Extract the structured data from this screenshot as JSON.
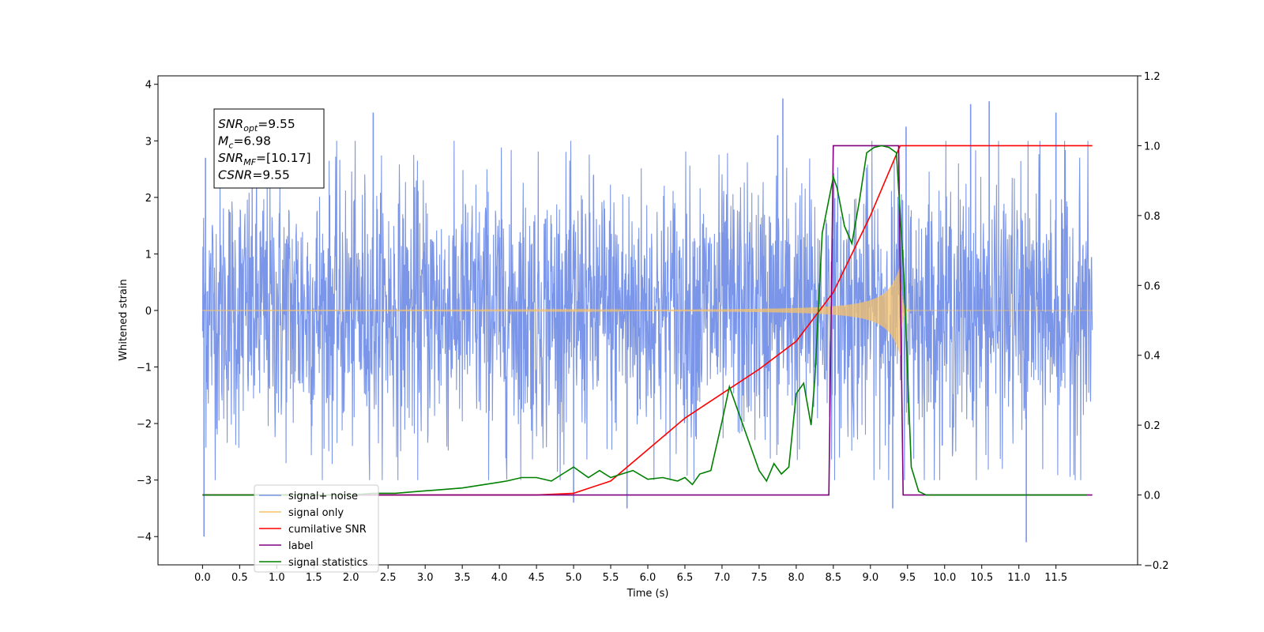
{
  "chart_data": {
    "type": "line",
    "title": "",
    "xlabel": "Time (s)",
    "ylabel": "Whitened strain",
    "xlim": [
      -0.6,
      12.6
    ],
    "ylim": [
      -4.5,
      4.15
    ],
    "y2lim": [
      -0.2,
      1.2
    ],
    "x_ticks": [
      0.0,
      0.5,
      1.0,
      1.5,
      2.0,
      2.5,
      3.0,
      3.5,
      4.0,
      4.5,
      5.0,
      5.5,
      6.0,
      6.5,
      7.0,
      7.5,
      8.0,
      8.5,
      9.0,
      9.5,
      10.0,
      10.5,
      11.0,
      11.5
    ],
    "x_tick_labels": [
      "0.0",
      "0.5",
      "1.0",
      "1.5",
      "2.0",
      "2.5",
      "3.0",
      "3.5",
      "4.0",
      "4.5",
      "5.0",
      "5.5",
      "6.0",
      "6.5",
      "7.0",
      "7.5",
      "8.0",
      "8.5",
      "9.0",
      "9.5",
      "10.0",
      "10.5",
      "11.0",
      "11.5"
    ],
    "y_ticks": [
      -4,
      -3,
      -2,
      -1,
      0,
      1,
      2,
      3,
      4
    ],
    "y_tick_labels": [
      "−4",
      "−3",
      "−2",
      "−1",
      "0",
      "1",
      "2",
      "3",
      "4"
    ],
    "y2_ticks": [
      -0.2,
      0.0,
      0.2,
      0.4,
      0.6,
      0.8,
      1.0,
      1.2
    ],
    "y2_tick_labels": [
      "−0.2",
      "0.0",
      "0.2",
      "0.4",
      "0.6",
      "0.8",
      "1.0",
      "1.2"
    ],
    "grid": false,
    "legend_position": "lower-left",
    "annotation": {
      "lines": [
        {
          "sym": "SNR",
          "sub": "opt",
          "value": "=9.55"
        },
        {
          "sym": "M",
          "sub": "c",
          "value": "=6.98"
        },
        {
          "sym": "SNR",
          "sub": "MF",
          "value": "=[10.17]"
        },
        {
          "sym": "CSNR",
          "sub": "",
          "value": "=9.55"
        }
      ]
    },
    "series": [
      {
        "name": "signal+ noise",
        "color": "#7b96e8",
        "axis": "left",
        "style": "noise",
        "x_range": [
          0.0,
          11.99
        ],
        "envelope_typical": 1.9,
        "prominent_spikes": [
          {
            "x": 0.02,
            "y": -4.0
          },
          {
            "x": 0.04,
            "y": 2.7
          },
          {
            "x": 2.3,
            "y": 3.5
          },
          {
            "x": 5.0,
            "y": -3.4
          },
          {
            "x": 5.72,
            "y": -3.5
          },
          {
            "x": 7.75,
            "y": 3.1
          },
          {
            "x": 7.82,
            "y": 3.75
          },
          {
            "x": 9.3,
            "y": -3.5
          },
          {
            "x": 9.48,
            "y": 3.25
          },
          {
            "x": 10.35,
            "y": 3.65
          },
          {
            "x": 10.6,
            "y": 3.7
          },
          {
            "x": 11.1,
            "y": -4.1
          },
          {
            "x": 11.5,
            "y": 3.5
          }
        ]
      },
      {
        "name": "signal only",
        "color": "#f5c26b",
        "axis": "left",
        "style": "chirp",
        "x_range": [
          0.0,
          11.99
        ],
        "merger_time": 9.4,
        "peak_amplitude": 0.8
      },
      {
        "name": "cumilative SNR",
        "color": "#ff0000",
        "axis": "right",
        "x": [
          0.0,
          4.5,
          5.0,
          5.5,
          6.0,
          6.5,
          7.0,
          7.5,
          8.0,
          8.5,
          9.0,
          9.2,
          9.4,
          9.5,
          10.0,
          11.0,
          11.99
        ],
        "values": [
          0.0,
          0.0,
          0.005,
          0.04,
          0.13,
          0.22,
          0.29,
          0.36,
          0.44,
          0.58,
          0.8,
          0.9,
          1.0,
          1.0,
          1.0,
          1.0,
          1.0
        ]
      },
      {
        "name": "label",
        "color": "#800080",
        "axis": "right",
        "x": [
          0.0,
          8.44,
          8.5,
          9.38,
          9.44,
          11.99
        ],
        "values": [
          0.0,
          0.0,
          1.0,
          1.0,
          0.0,
          0.0
        ]
      },
      {
        "name": "signal statistics",
        "color": "#008000",
        "axis": "right",
        "x": [
          0.0,
          2.0,
          2.3,
          2.6,
          2.9,
          3.2,
          3.5,
          3.8,
          4.1,
          4.3,
          4.5,
          4.7,
          4.85,
          5.0,
          5.2,
          5.35,
          5.5,
          5.65,
          5.8,
          6.0,
          6.2,
          6.4,
          6.5,
          6.6,
          6.7,
          6.85,
          7.0,
          7.1,
          7.15,
          7.3,
          7.5,
          7.6,
          7.7,
          7.8,
          7.9,
          8.0,
          8.1,
          8.2,
          8.25,
          8.35,
          8.5,
          8.55,
          8.65,
          8.75,
          8.85,
          8.95,
          9.05,
          9.15,
          9.25,
          9.35,
          9.45,
          9.55,
          9.65,
          9.75,
          11.92
        ],
        "values": [
          0.0,
          0.0,
          0.005,
          0.005,
          0.01,
          0.015,
          0.02,
          0.03,
          0.04,
          0.05,
          0.05,
          0.04,
          0.06,
          0.08,
          0.05,
          0.07,
          0.05,
          0.06,
          0.07,
          0.045,
          0.05,
          0.04,
          0.05,
          0.03,
          0.06,
          0.07,
          0.21,
          0.31,
          0.28,
          0.19,
          0.07,
          0.04,
          0.09,
          0.06,
          0.08,
          0.29,
          0.32,
          0.2,
          0.33,
          0.75,
          0.91,
          0.88,
          0.77,
          0.72,
          0.84,
          0.98,
          0.995,
          1.0,
          0.995,
          0.98,
          0.63,
          0.08,
          0.01,
          0.0,
          0.0
        ]
      }
    ]
  }
}
